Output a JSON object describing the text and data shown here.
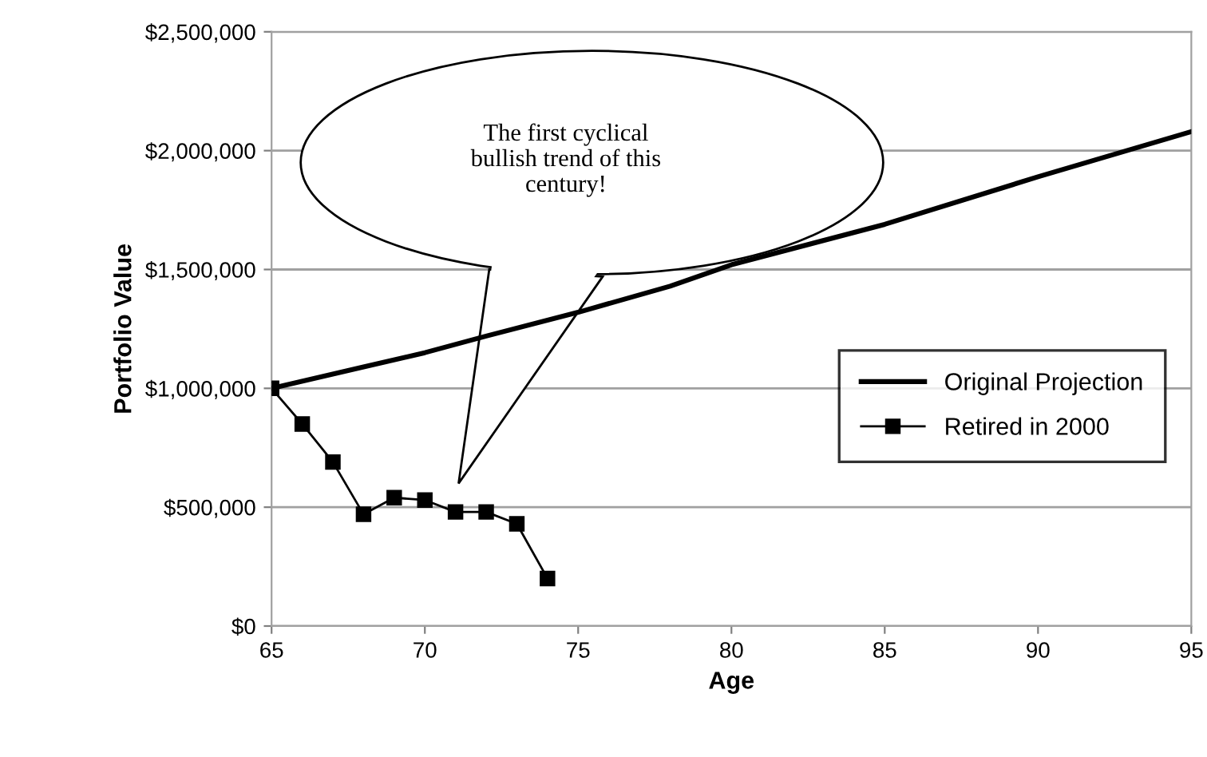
{
  "chart_data": {
    "type": "line",
    "xlabel": "Age",
    "ylabel": "Portfolio Value",
    "series": [
      {
        "name": "Original Projection",
        "color": "#000000",
        "x": [
          65,
          68,
          70,
          72,
          75,
          78,
          80,
          85,
          90,
          95
        ],
        "values": [
          1000000,
          1090000,
          1150000,
          1220000,
          1320000,
          1430000,
          1520000,
          1690000,
          1890000,
          2080000
        ],
        "marker": "none"
      },
      {
        "name": "Retired in 2000",
        "color": "#000000",
        "x": [
          65,
          66,
          67,
          68,
          69,
          70,
          71,
          72,
          73,
          74
        ],
        "values": [
          1000000,
          850000,
          690000,
          470000,
          540000,
          530000,
          480000,
          480000,
          430000,
          200000
        ],
        "marker": "square"
      }
    ],
    "xlim": [
      65,
      95
    ],
    "xticks": [
      65,
      70,
      75,
      80,
      85,
      90,
      95
    ],
    "ylim": [
      0,
      2500000
    ],
    "yticks": [
      {
        "value": 0,
        "label": "$0"
      },
      {
        "value": 500000,
        "label": "$500,000"
      },
      {
        "value": 1000000,
        "label": "$1,000,000"
      },
      {
        "value": 1500000,
        "label": "$1,500,000"
      },
      {
        "value": 2000000,
        "label": "$2,000,000"
      },
      {
        "value": 2500000,
        "label": "$2,500,000"
      }
    ],
    "grid": "y",
    "legend": "right",
    "annotations": [
      "The first cyclical\nbullish trend of this\ncentury!"
    ]
  }
}
